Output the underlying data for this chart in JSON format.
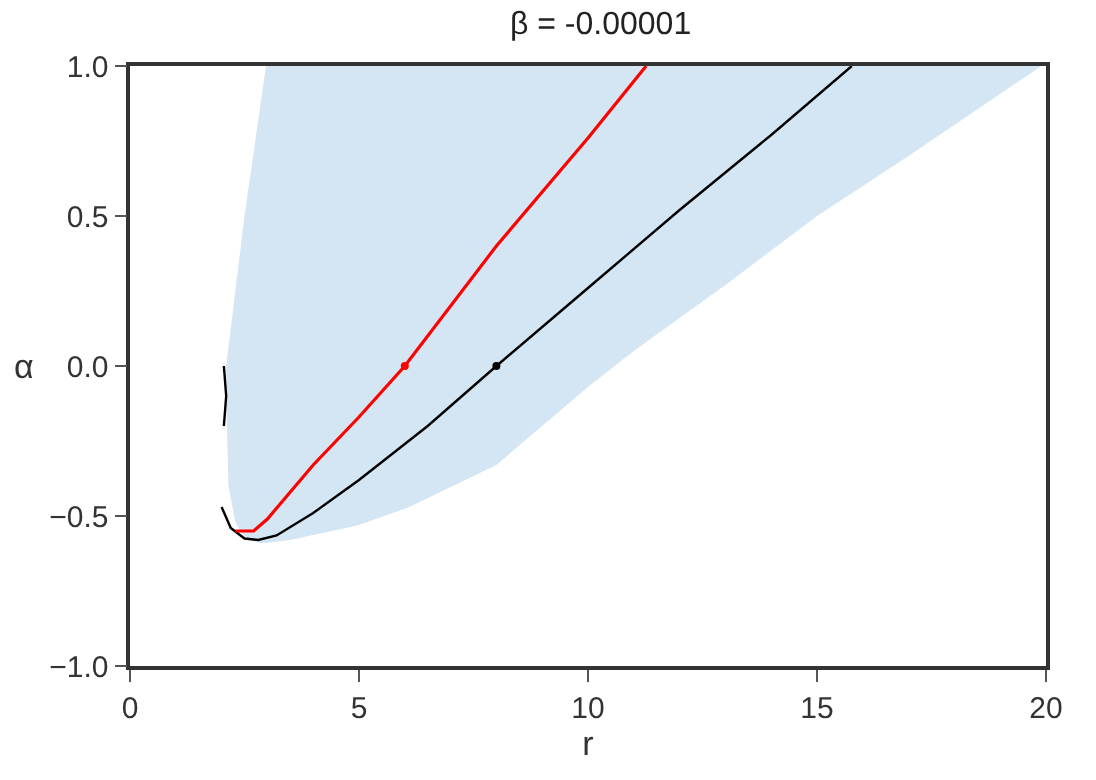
{
  "chart_data": {
    "type": "line",
    "title": "β = -0.00001",
    "xlabel": "r",
    "ylabel": "α",
    "xlim": [
      0,
      20
    ],
    "xticks": [
      0,
      5,
      10,
      15,
      20
    ],
    "ylim": [
      -1,
      1
    ],
    "yticks": [
      {
        "value": -1,
        "label": "−1.0"
      },
      {
        "value": -0.5,
        "label": "−0.5"
      },
      {
        "value": 0,
        "label": "0.0"
      },
      {
        "value": 0.5,
        "label": "0.5"
      },
      {
        "value": 1,
        "label": "1.0"
      }
    ],
    "line_style": "solid",
    "series": [
      {
        "type": "area",
        "color": "#d4e6f3",
        "x": [
          2.1,
          2.1,
          2.5,
          2.97,
          19.9,
          17,
          15,
          13,
          11,
          10,
          8,
          6.1,
          5,
          3.5,
          2.97,
          2.84,
          2.6,
          2.4,
          2.3,
          2.15
        ],
        "values": [
          -0.1,
          0,
          0.5,
          1,
          1,
          0.7,
          0.5,
          0.27,
          0.05,
          -0.07,
          -0.33,
          -0.47,
          -0.53,
          -0.58,
          -0.59,
          -0.59,
          -0.58,
          -0.55,
          -0.52,
          -0.4
        ]
      },
      {
        "color": "#000000",
        "marker": "none",
        "x": [
          2.0,
          2.2,
          2.5,
          2.8,
          3.2,
          4,
          5,
          6.5,
          8,
          10,
          12,
          14,
          15.76
        ],
        "values": [
          -0.47,
          -0.54,
          -0.575,
          -0.58,
          -0.565,
          -0.49,
          -0.38,
          -0.2,
          0,
          0.26,
          0.52,
          0.77,
          1
        ]
      },
      {
        "color": "#000000",
        "marker": "none",
        "x": [
          2.05,
          2.1,
          2.05
        ],
        "values": [
          0,
          -0.1,
          -0.2
        ]
      },
      {
        "color": "#ff0000",
        "marker": "none",
        "x": [
          2.3,
          2.7,
          3,
          4,
          5,
          6,
          8,
          10,
          11.27
        ],
        "values": [
          -0.55,
          -0.55,
          -0.51,
          -0.33,
          -0.17,
          0,
          0.4,
          0.76,
          1
        ]
      },
      {
        "type": "scatter",
        "color": "#ff0000",
        "x": [
          6
        ],
        "values": [
          0
        ],
        "marker": "circle"
      },
      {
        "type": "scatter",
        "color": "#000000",
        "x": [
          8
        ],
        "values": [
          0
        ],
        "marker": "circle"
      }
    ]
  }
}
